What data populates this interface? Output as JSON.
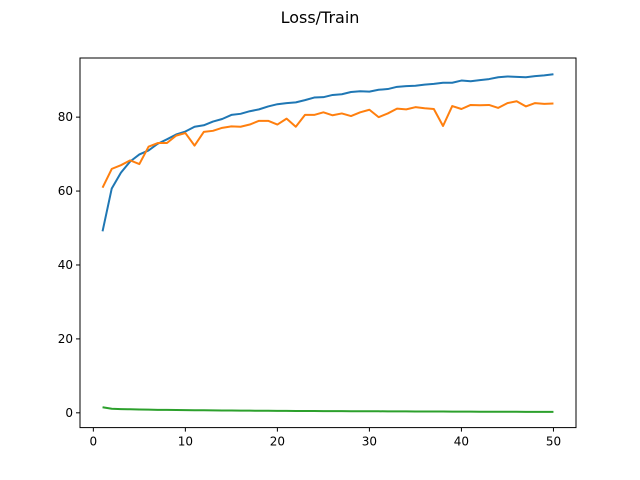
{
  "chart_data": {
    "type": "line",
    "title": "Loss/Train",
    "xlabel": "",
    "ylabel": "",
    "xlim": [
      -1.45,
      52.45
    ],
    "ylim": [
      -4.0,
      96.0
    ],
    "xticks": [
      0,
      10,
      20,
      30,
      40,
      50
    ],
    "yticks": [
      0,
      20,
      40,
      60,
      80
    ],
    "grid": false,
    "colors": [
      "#1f77b4",
      "#ff7f0e",
      "#2ca02c"
    ],
    "x": [
      1,
      2,
      3,
      4,
      5,
      6,
      7,
      8,
      9,
      10,
      11,
      12,
      13,
      14,
      15,
      16,
      17,
      18,
      19,
      20,
      21,
      22,
      23,
      24,
      25,
      26,
      27,
      28,
      29,
      30,
      31,
      32,
      33,
      34,
      35,
      36,
      37,
      38,
      39,
      40,
      41,
      42,
      43,
      44,
      45,
      46,
      47,
      48,
      49,
      50
    ],
    "series": [
      {
        "values": [
          49.1,
          60.7,
          65.0,
          68.0,
          69.9,
          71.0,
          72.8,
          74.0,
          75.3,
          76.1,
          77.4,
          77.8,
          78.8,
          79.5,
          80.6,
          80.9,
          81.6,
          82.1,
          82.9,
          83.5,
          83.8,
          84.0,
          84.6,
          85.3,
          85.4,
          86.0,
          86.2,
          86.8,
          87.0,
          86.9,
          87.4,
          87.6,
          88.2,
          88.4,
          88.5,
          88.8,
          89.0,
          89.3,
          89.3,
          89.9,
          89.7,
          90.0,
          90.3,
          90.8,
          91.0,
          90.9,
          90.8,
          91.1,
          91.3,
          91.6
        ]
      },
      {
        "values": [
          60.9,
          66.0,
          67.0,
          68.3,
          67.3,
          72.0,
          73.0,
          73.0,
          75.0,
          75.7,
          72.3,
          76.0,
          76.3,
          77.1,
          77.5,
          77.4,
          78.0,
          79.0,
          79.0,
          78.0,
          79.6,
          77.4,
          80.6,
          80.6,
          81.3,
          80.5,
          81.0,
          80.3,
          81.3,
          82.0,
          80.0,
          81.0,
          82.3,
          82.1,
          82.7,
          82.4,
          82.2,
          77.6,
          83.0,
          82.2,
          83.3,
          83.2,
          83.3,
          82.5,
          83.8,
          84.3,
          82.9,
          83.8,
          83.6,
          83.7
        ]
      },
      {
        "values": [
          1.5,
          1.1,
          1.0,
          0.95,
          0.9,
          0.85,
          0.8,
          0.78,
          0.75,
          0.72,
          0.7,
          0.68,
          0.66,
          0.64,
          0.62,
          0.6,
          0.58,
          0.56,
          0.55,
          0.53,
          0.52,
          0.5,
          0.49,
          0.48,
          0.47,
          0.46,
          0.45,
          0.44,
          0.43,
          0.42,
          0.41,
          0.4,
          0.39,
          0.38,
          0.37,
          0.36,
          0.35,
          0.34,
          0.33,
          0.32,
          0.31,
          0.3,
          0.3,
          0.29,
          0.28,
          0.28,
          0.27,
          0.27,
          0.26,
          0.26
        ]
      }
    ]
  }
}
